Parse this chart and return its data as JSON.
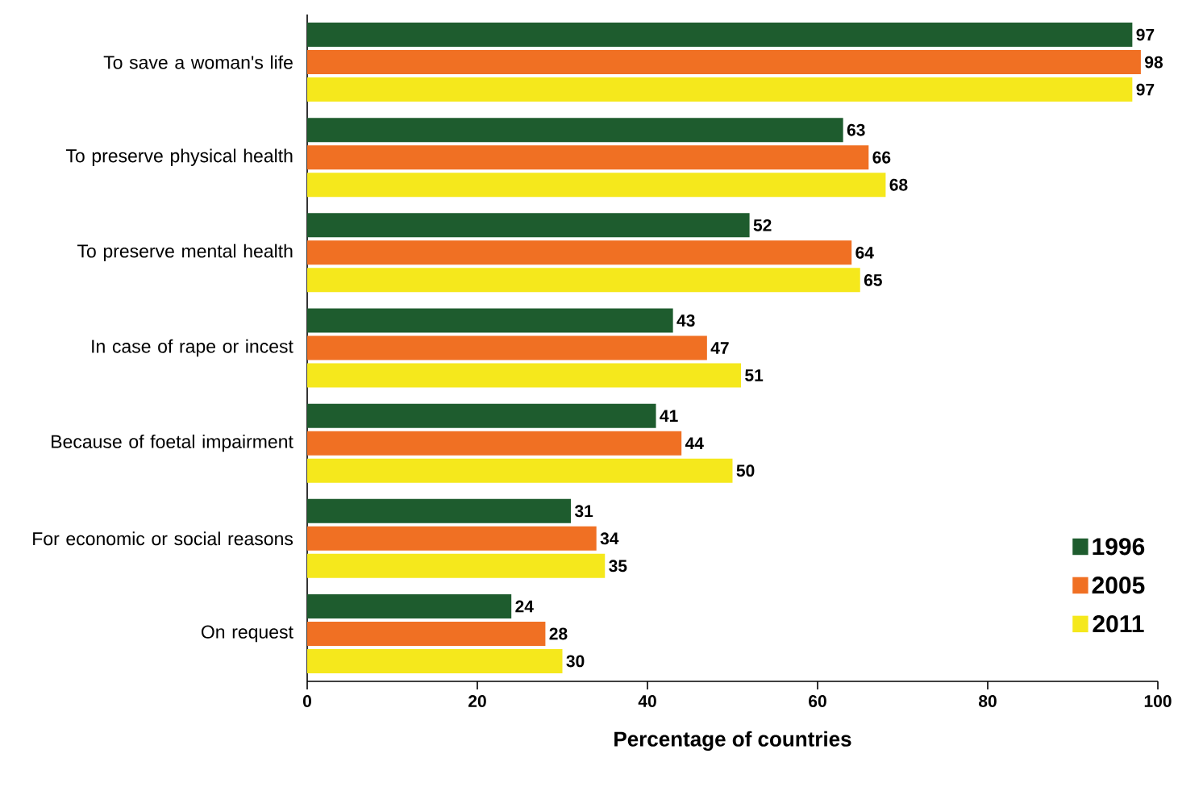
{
  "chart_data": {
    "type": "bar",
    "orientation": "horizontal",
    "categories": [
      "To save a woman's life",
      "To preserve physical health",
      "To preserve mental health",
      "In case of rape or incest",
      "Because of foetal impairment",
      "For economic or social reasons",
      "On request"
    ],
    "series": [
      {
        "name": "1996",
        "color": "#1e5c2e",
        "values": [
          97,
          63,
          52,
          43,
          41,
          31,
          24
        ]
      },
      {
        "name": "2005",
        "color": "#f07023",
        "values": [
          98,
          66,
          64,
          47,
          44,
          34,
          28
        ]
      },
      {
        "name": "2011",
        "color": "#f5e81c",
        "values": [
          97,
          68,
          65,
          51,
          50,
          35,
          30
        ]
      }
    ],
    "xlim": [
      0,
      100
    ],
    "xticks": [
      0,
      20,
      40,
      60,
      80,
      100
    ],
    "xlabel": "Percentage of countries",
    "data_labels": true,
    "legend": "bottom right",
    "grid": false
  }
}
